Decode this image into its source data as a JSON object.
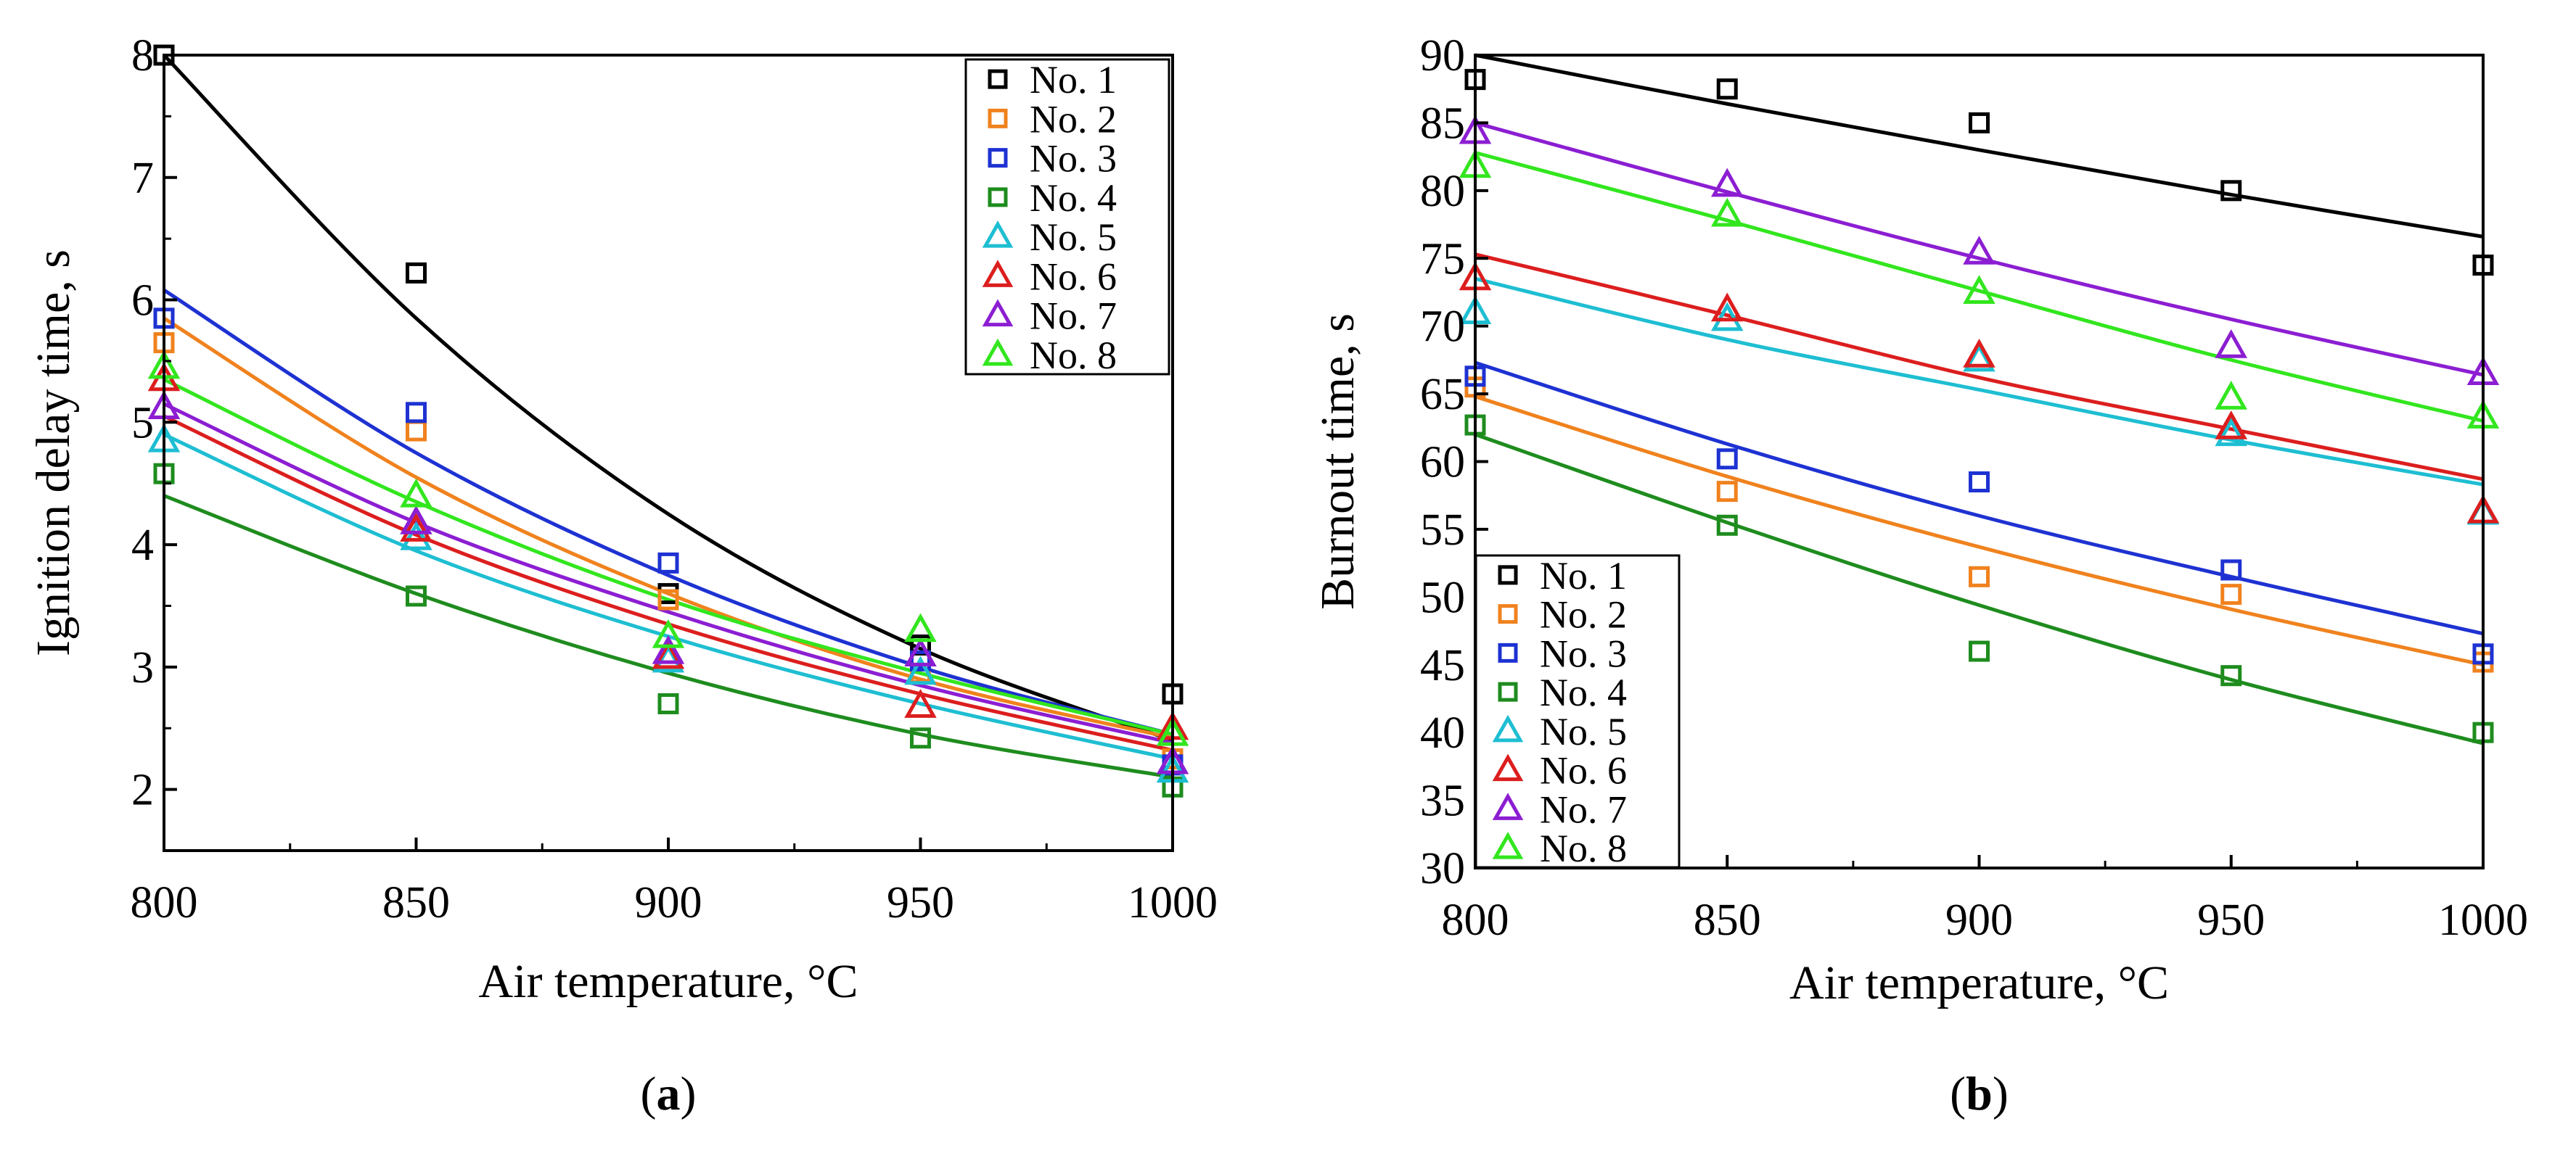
{
  "chart_data": [
    {
      "type": "scatter",
      "panel_label": "a",
      "xlabel": "Air temperature, °C",
      "ylabel": "Ignition delay time, s",
      "xlim": [
        800,
        1000
      ],
      "ylim": [
        1.5,
        8
      ],
      "x_ticks": [
        800,
        850,
        900,
        950,
        1000
      ],
      "y_ticks": [
        2,
        3,
        4,
        5,
        6,
        7,
        8
      ],
      "grid": false,
      "legend_position": "top-right",
      "series": [
        {
          "name": "No. 1",
          "marker": "square",
          "color": "#000000",
          "x": [
            800,
            850,
            900,
            950,
            1000
          ],
          "y": [
            8.0,
            6.22,
            3.6,
            3.18,
            2.78
          ],
          "fit": {
            "x": [
              800,
              850,
              900,
              950,
              1000
            ],
            "y": [
              8.0,
              5.85,
              4.25,
              3.15,
              2.4
            ]
          }
        },
        {
          "name": "No. 2",
          "marker": "square",
          "color": "#f0821e",
          "x": [
            800,
            850,
            900,
            950,
            1000
          ],
          "y": [
            5.65,
            4.93,
            3.55,
            2.95,
            2.25
          ],
          "fit": {
            "x": [
              800,
              850,
              900,
              950,
              1000
            ],
            "y": [
              5.85,
              4.55,
              3.6,
              2.9,
              2.42
            ]
          }
        },
        {
          "name": "No. 3",
          "marker": "square",
          "color": "#1e32d2",
          "x": [
            800,
            850,
            900,
            950,
            1000
          ],
          "y": [
            5.85,
            5.08,
            3.85,
            3.05,
            2.2
          ],
          "fit": {
            "x": [
              800,
              850,
              900,
              950,
              1000
            ],
            "y": [
              6.08,
              4.75,
              3.75,
              3.0,
              2.45
            ]
          }
        },
        {
          "name": "No. 4",
          "marker": "square",
          "color": "#1e8c1e",
          "x": [
            800,
            850,
            900,
            950,
            1000
          ],
          "y": [
            4.58,
            3.58,
            2.7,
            2.42,
            2.02
          ],
          "fit": {
            "x": [
              800,
              850,
              900,
              950,
              1000
            ],
            "y": [
              4.4,
              3.6,
              2.95,
              2.45,
              2.1
            ]
          }
        },
        {
          "name": "No. 5",
          "marker": "triangle",
          "color": "#1ebed2",
          "x": [
            800,
            850,
            900,
            950,
            1000
          ],
          "y": [
            4.85,
            4.05,
            3.05,
            2.95,
            2.15
          ],
          "fit": {
            "x": [
              800,
              850,
              900,
              950,
              1000
            ],
            "y": [
              4.9,
              3.95,
              3.25,
              2.7,
              2.25
            ]
          }
        },
        {
          "name": "No. 6",
          "marker": "triangle",
          "color": "#dc1e1e",
          "x": [
            800,
            850,
            900,
            950,
            1000
          ],
          "y": [
            5.35,
            4.12,
            3.08,
            2.68,
            2.5
          ],
          "fit": {
            "x": [
              800,
              850,
              900,
              950,
              1000
            ],
            "y": [
              5.05,
              4.08,
              3.35,
              2.78,
              2.32
            ]
          }
        },
        {
          "name": "No. 7",
          "marker": "triangle",
          "color": "#8c1ed2",
          "x": [
            800,
            850,
            900,
            950,
            1000
          ],
          "y": [
            5.12,
            4.18,
            3.12,
            3.1,
            2.22
          ],
          "fit": {
            "x": [
              800,
              850,
              900,
              950,
              1000
            ],
            "y": [
              5.15,
              4.18,
              3.45,
              2.85,
              2.38
            ]
          }
        },
        {
          "name": "No. 8",
          "marker": "triangle",
          "color": "#32e61e",
          "x": [
            800,
            850,
            900,
            950,
            1000
          ],
          "y": [
            5.45,
            4.4,
            3.25,
            3.3,
            2.45
          ],
          "fit": {
            "x": [
              800,
              850,
              900,
              950,
              1000
            ],
            "y": [
              5.35,
              4.35,
              3.55,
              2.95,
              2.45
            ]
          }
        }
      ]
    },
    {
      "type": "scatter",
      "panel_label": "b",
      "xlabel": "Air temperature, °C",
      "ylabel": "Burnout time, s",
      "xlim": [
        800,
        1000
      ],
      "ylim": [
        30,
        90
      ],
      "x_ticks": [
        800,
        850,
        900,
        950,
        1000
      ],
      "y_ticks": [
        30,
        35,
        40,
        45,
        50,
        55,
        60,
        65,
        70,
        75,
        80,
        85,
        90
      ],
      "grid": false,
      "legend_position": "bottom-left",
      "series": [
        {
          "name": "No. 1",
          "marker": "square",
          "color": "#000000",
          "x": [
            800,
            850,
            900,
            950,
            1000
          ],
          "y": [
            88.2,
            87.5,
            85.0,
            80.0,
            74.5
          ],
          "fit": {
            "x": [
              800,
              850,
              900,
              950,
              1000
            ],
            "y": [
              90.0,
              86.4,
              83.0,
              79.7,
              76.6
            ]
          }
        },
        {
          "name": "No. 2",
          "marker": "square",
          "color": "#f0821e",
          "x": [
            800,
            850,
            900,
            950,
            1000
          ],
          "y": [
            65.5,
            57.8,
            51.5,
            50.2,
            45.2
          ],
          "fit": {
            "x": [
              800,
              850,
              900,
              950,
              1000
            ],
            "y": [
              64.8,
              58.9,
              53.7,
              49.1,
              45.0
            ]
          }
        },
        {
          "name": "No. 3",
          "marker": "square",
          "color": "#1e32d2",
          "x": [
            800,
            850,
            900,
            950,
            1000
          ],
          "y": [
            66.3,
            60.2,
            58.5,
            52.0,
            45.8
          ],
          "fit": {
            "x": [
              800,
              850,
              900,
              950,
              1000
            ],
            "y": [
              67.3,
              61.3,
              56.0,
              51.5,
              47.3
            ]
          }
        },
        {
          "name": "No. 4",
          "marker": "square",
          "color": "#1e8c1e",
          "x": [
            800,
            850,
            900,
            950,
            1000
          ],
          "y": [
            62.7,
            55.3,
            46.0,
            44.2,
            40.0
          ],
          "fit": {
            "x": [
              800,
              850,
              900,
              950,
              1000
            ],
            "y": [
              62.0,
              55.5,
              49.4,
              43.9,
              39.2
            ]
          }
        },
        {
          "name": "No. 5",
          "marker": "triangle",
          "color": "#1ebed2",
          "x": [
            800,
            850,
            900,
            950,
            1000
          ],
          "y": [
            71.0,
            70.5,
            67.5,
            62.0,
            56.2
          ],
          "fit": {
            "x": [
              800,
              850,
              900,
              950,
              1000
            ],
            "y": [
              73.5,
              69.0,
              65.3,
              61.6,
              58.3
            ]
          }
        },
        {
          "name": "No. 6",
          "marker": "triangle",
          "color": "#dc1e1e",
          "x": [
            800,
            850,
            900,
            950,
            1000
          ],
          "y": [
            73.5,
            71.2,
            67.8,
            62.5,
            56.3
          ],
          "fit": {
            "x": [
              800,
              850,
              900,
              950,
              1000
            ],
            "y": [
              75.3,
              70.8,
              66.2,
              62.4,
              58.7
            ]
          }
        },
        {
          "name": "No. 7",
          "marker": "triangle",
          "color": "#8c1ed2",
          "x": [
            800,
            850,
            900,
            950,
            1000
          ],
          "y": [
            84.3,
            80.4,
            75.4,
            68.5,
            66.5
          ],
          "fit": {
            "x": [
              800,
              850,
              900,
              950,
              1000
            ],
            "y": [
              85.0,
              79.9,
              75.0,
              70.5,
              66.4
            ]
          }
        },
        {
          "name": "No. 8",
          "marker": "triangle",
          "color": "#32e61e",
          "x": [
            800,
            850,
            900,
            950,
            1000
          ],
          "y": [
            81.8,
            78.2,
            72.5,
            64.7,
            63.3
          ],
          "fit": {
            "x": [
              800,
              850,
              900,
              950,
              1000
            ],
            "y": [
              82.8,
              77.8,
              72.6,
              67.5,
              63.0
            ]
          }
        }
      ]
    }
  ]
}
